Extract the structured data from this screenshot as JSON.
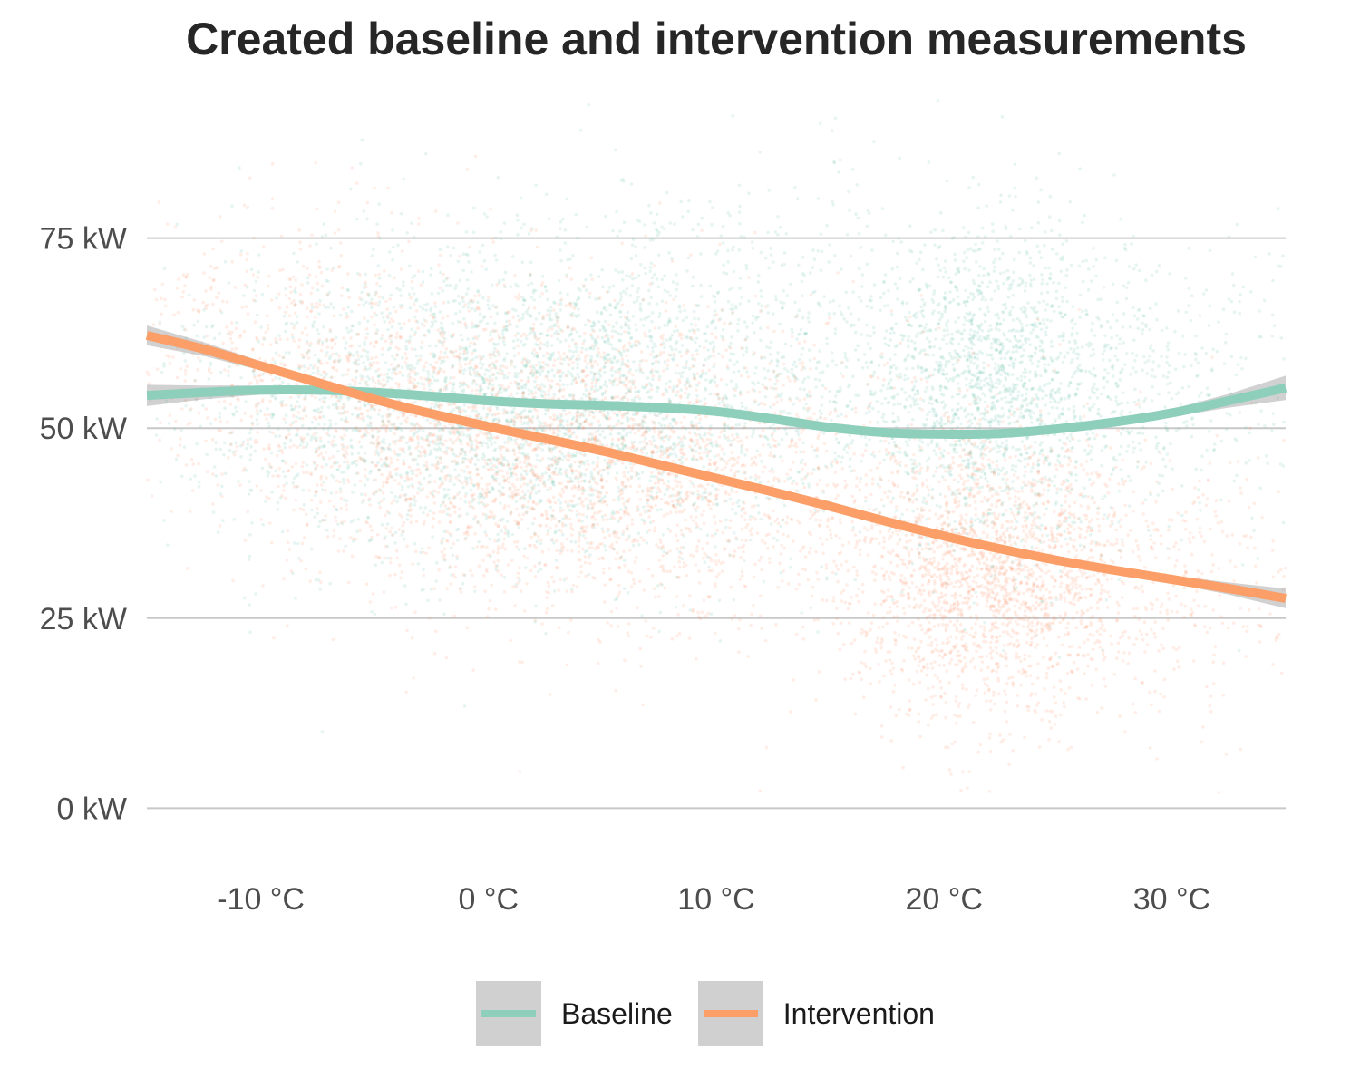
{
  "chart_data": {
    "type": "scatter",
    "title": "Created baseline and intervention measurements",
    "xlabel": "",
    "ylabel": "",
    "xlim": [
      -15,
      35
    ],
    "ylim": [
      -7,
      95
    ],
    "x_ticks": [
      {
        "value": -10,
        "label": "-10 °C"
      },
      {
        "value": 0,
        "label": "0 °C"
      },
      {
        "value": 10,
        "label": "10 °C"
      },
      {
        "value": 20,
        "label": "20 °C"
      },
      {
        "value": 30,
        "label": "30 °C"
      }
    ],
    "y_ticks": [
      {
        "value": 0,
        "label": "0 kW"
      },
      {
        "value": 25,
        "label": "25 kW"
      },
      {
        "value": 50,
        "label": "50 kW"
      },
      {
        "value": 75,
        "label": "75 kW"
      }
    ],
    "grid": "horizontal-major",
    "legend_position": "bottom",
    "series": [
      {
        "name": "Baseline",
        "color": "#8ecfbb",
        "point_color": "#66c2a5",
        "smooth": {
          "x": [
            -15,
            -12.5,
            -10,
            -7.5,
            -5,
            -2.5,
            0,
            2.5,
            5,
            7.5,
            10,
            12.5,
            15,
            17.5,
            20,
            22.5,
            25,
            27.5,
            30,
            32.5,
            35
          ],
          "y": [
            54.3,
            54.7,
            55,
            55,
            54.7,
            54.2,
            53.6,
            53.2,
            53,
            52.7,
            52.2,
            51.2,
            50.1,
            49.4,
            49.2,
            49.3,
            49.9,
            50.8,
            52,
            53.6,
            55.3
          ]
        },
        "ci_halfwidth": {
          "x": [
            -15,
            -12.5,
            -10,
            -5,
            0,
            10,
            20,
            30,
            32.5,
            35
          ],
          "y": [
            1.4,
            0.9,
            0.6,
            0.4,
            0.3,
            0.3,
            0.3,
            0.5,
            0.9,
            1.6
          ]
        },
        "clusters": [
          {
            "cx": 2,
            "cy": 52,
            "sx": 6,
            "sy": 10,
            "n": 2200
          },
          {
            "cx": 22,
            "cy": 55,
            "sx": 3,
            "sy": 10,
            "n": 1700
          },
          {
            "cx": 9,
            "cy": 60,
            "sx": 8,
            "sy": 12,
            "n": 1100
          },
          {
            "cx": -7,
            "cy": 55,
            "sx": 5,
            "sy": 9,
            "n": 450
          },
          {
            "cx": 29,
            "cy": 55,
            "sx": 4,
            "sy": 10,
            "n": 450
          }
        ]
      },
      {
        "name": "Intervention",
        "color": "#fc9e67",
        "point_color": "#fc8d62",
        "smooth": {
          "x": [
            -15,
            -12.5,
            -10,
            -7.5,
            -5,
            -2.5,
            0,
            2.5,
            5,
            7.5,
            10,
            12.5,
            15,
            17.5,
            20,
            22.5,
            25,
            27.5,
            30,
            32.5,
            35
          ],
          "y": [
            62.2,
            60.4,
            58.2,
            56,
            53.8,
            51.9,
            50.2,
            48.6,
            47,
            45.2,
            43.4,
            41.6,
            39.7,
            37.7,
            35.8,
            34.1,
            32.6,
            31.3,
            30.1,
            28.9,
            27.6
          ]
        },
        "ci_halfwidth": {
          "x": [
            -15,
            -12.5,
            -10,
            -5,
            0,
            10,
            20,
            30,
            32.5,
            35
          ],
          "y": [
            1.3,
            0.9,
            0.6,
            0.4,
            0.3,
            0.3,
            0.3,
            0.5,
            0.8,
            1.3
          ]
        },
        "clusters": [
          {
            "cx": 2,
            "cy": 48,
            "sx": 6,
            "sy": 10,
            "n": 2000
          },
          {
            "cx": 22,
            "cy": 30,
            "sx": 3,
            "sy": 9,
            "n": 1900
          },
          {
            "cx": 9,
            "cy": 42,
            "sx": 7,
            "sy": 10,
            "n": 1100
          },
          {
            "cx": -9,
            "cy": 60,
            "sx": 5,
            "sy": 9,
            "n": 650
          },
          {
            "cx": 29,
            "cy": 30,
            "sx": 4,
            "sy": 9,
            "n": 450
          }
        ]
      }
    ]
  }
}
